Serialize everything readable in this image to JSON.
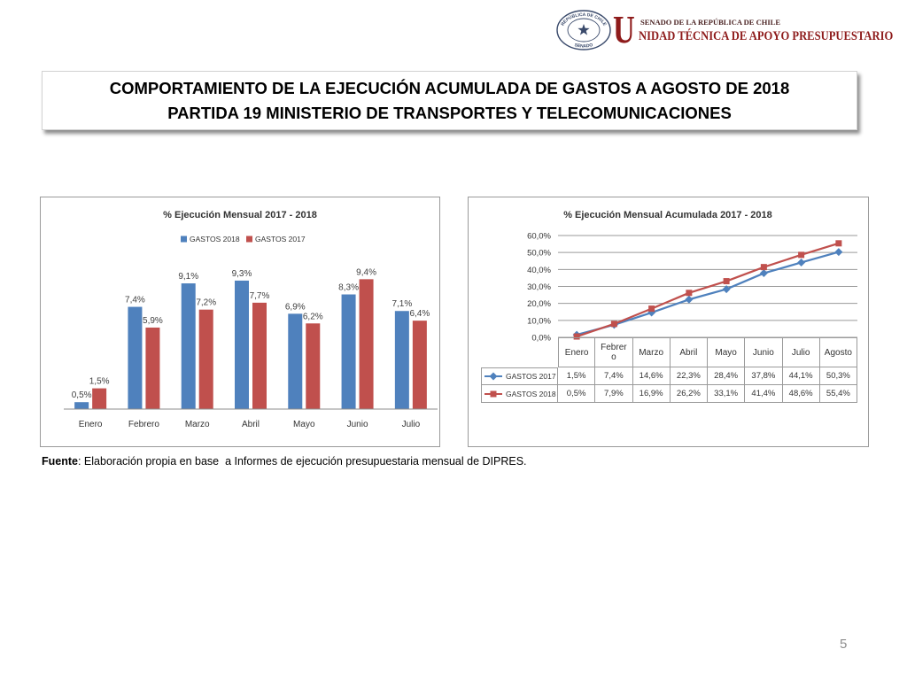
{
  "header": {
    "seal": {
      "top_text": "REPÚBLICA DE CHILE",
      "bottom_text": "SENADO"
    },
    "logo_initial": "U",
    "org_line1": "SENADO DE LA REPÚBLICA DE CHILE",
    "org_line2": "NIDAD TÉCNICA DE APOYO PRESUPUESTARIO"
  },
  "title": {
    "line1": "COMPORTAMIENTO DE LA EJECUCIÓN ACUMULADA DE GASTOS A AGOSTO DE 2018",
    "line2": "PARTIDA 19 MINISTERIO DE TRANSPORTES Y TELECOMUNICACIONES"
  },
  "chart_data": [
    {
      "type": "bar",
      "title": "% Ejecución Mensual 2017 - 2018",
      "categories": [
        "Enero",
        "Febrero",
        "Marzo",
        "Abril",
        "Mayo",
        "Junio",
        "Julio"
      ],
      "series": [
        {
          "name": "GASTOS 2018",
          "values": [
            0.5,
            7.4,
            9.1,
            9.3,
            6.9,
            8.3,
            7.1
          ],
          "color": "#4F81BD"
        },
        {
          "name": "GASTOS 2017",
          "values": [
            1.5,
            5.9,
            7.2,
            7.7,
            6.2,
            9.4,
            6.4
          ],
          "color": "#C0504D"
        }
      ],
      "value_unit": "%",
      "ylim": [
        0,
        10
      ],
      "grid": false,
      "legend": "top",
      "data_labels": true
    },
    {
      "type": "line",
      "title": "% Ejecución Mensual Acumulada 2017 - 2018",
      "categories": [
        "Enero",
        "Febrero",
        "Marzo",
        "Abril",
        "Mayo",
        "Junio",
        "Julio",
        "Agosto"
      ],
      "series": [
        {
          "name": "GASTOS 2017",
          "values": [
            1.5,
            7.4,
            14.6,
            22.3,
            28.4,
            37.8,
            44.1,
            50.3
          ],
          "color": "#4F81BD",
          "marker": "diamond"
        },
        {
          "name": "GASTOS 2018",
          "values": [
            0.5,
            7.9,
            16.9,
            26.2,
            33.1,
            41.4,
            48.6,
            55.4
          ],
          "color": "#C0504D",
          "marker": "square"
        }
      ],
      "value_unit": "%",
      "ylim": [
        0,
        60
      ],
      "yticks": [
        0,
        10,
        20,
        30,
        40,
        50,
        60
      ],
      "grid": true,
      "legend": "data-table"
    }
  ],
  "footer": {
    "source_label": "Fuente",
    "source_text": ": Elaboración propia en base  a Informes de ejecución presupuestaria mensual de DIPRES.",
    "page_number": "5"
  },
  "colors": {
    "logo_red": "#8E1B1B",
    "seal": "#3A4A6B",
    "gridline": "#9A9A9A"
  }
}
